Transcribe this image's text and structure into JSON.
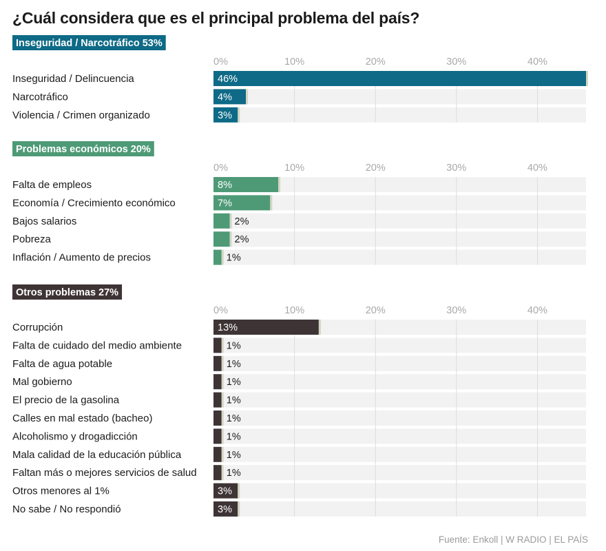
{
  "title": "¿Cuál considera que es el principal problema del país?",
  "source": "Fuente: Enkoll | W RADIO | EL PAÍS",
  "colors": {
    "seguridad": "#0e6a86",
    "economia": "#4e9a77",
    "otros": "#3e3436",
    "track": "#f2f2f2",
    "grid": "#dcdcdc",
    "tip": "#d4d6c4",
    "tick": "#a8a8a8"
  },
  "chart_data": [
    {
      "type": "bar",
      "orientation": "horizontal",
      "group_label": "Inseguridad / Narcotráfico 53%",
      "color_key": "seguridad",
      "xlim": [
        0,
        46
      ],
      "ticks": [
        "0%",
        "10%",
        "20%",
        "30%",
        "40%"
      ],
      "tick_values": [
        0,
        10,
        20,
        30,
        40
      ],
      "categories": [
        "Inseguridad / Delincuencia",
        "Narcotráfico",
        "Violencia / Crimen organizado"
      ],
      "values": [
        46,
        4,
        3
      ],
      "value_labels": [
        "46%",
        "4%",
        "3%"
      ]
    },
    {
      "type": "bar",
      "orientation": "horizontal",
      "group_label": "Problemas económicos 20%",
      "color_key": "economia",
      "xlim": [
        0,
        46
      ],
      "ticks": [
        "0%",
        "10%",
        "20%",
        "30%",
        "40%"
      ],
      "tick_values": [
        0,
        10,
        20,
        30,
        40
      ],
      "categories": [
        "Falta de empleos",
        "Economía / Crecimiento económico",
        "Bajos salarios",
        "Pobreza",
        "Inflación / Aumento de precios"
      ],
      "values": [
        8,
        7,
        2,
        2,
        1
      ],
      "value_labels": [
        "8%",
        "7%",
        "2%",
        "2%",
        "1%"
      ]
    },
    {
      "type": "bar",
      "orientation": "horizontal",
      "group_label": "Otros problemas 27%",
      "color_key": "otros",
      "xlim": [
        0,
        46
      ],
      "ticks": [
        "0%",
        "10%",
        "20%",
        "30%",
        "40%"
      ],
      "tick_values": [
        0,
        10,
        20,
        30,
        40
      ],
      "categories": [
        "Corrupción",
        "Falta de cuidado del medio ambiente",
        "Falta de agua potable",
        "Mal gobierno",
        "El precio de la gasolina",
        "Calles en mal estado (bacheo)",
        "Alcoholismo y drogadicción",
        "Mala calidad de la educación pública",
        "Faltan más o mejores servicios de salud",
        "Otros menores al 1%",
        "No sabe / No respondió"
      ],
      "values": [
        13,
        1,
        1,
        1,
        1,
        1,
        1,
        1,
        1,
        3,
        3
      ],
      "value_labels": [
        "13%",
        "1%",
        "1%",
        "1%",
        "1%",
        "1%",
        "1%",
        "1%",
        "1%",
        "3%",
        "3%"
      ]
    }
  ]
}
